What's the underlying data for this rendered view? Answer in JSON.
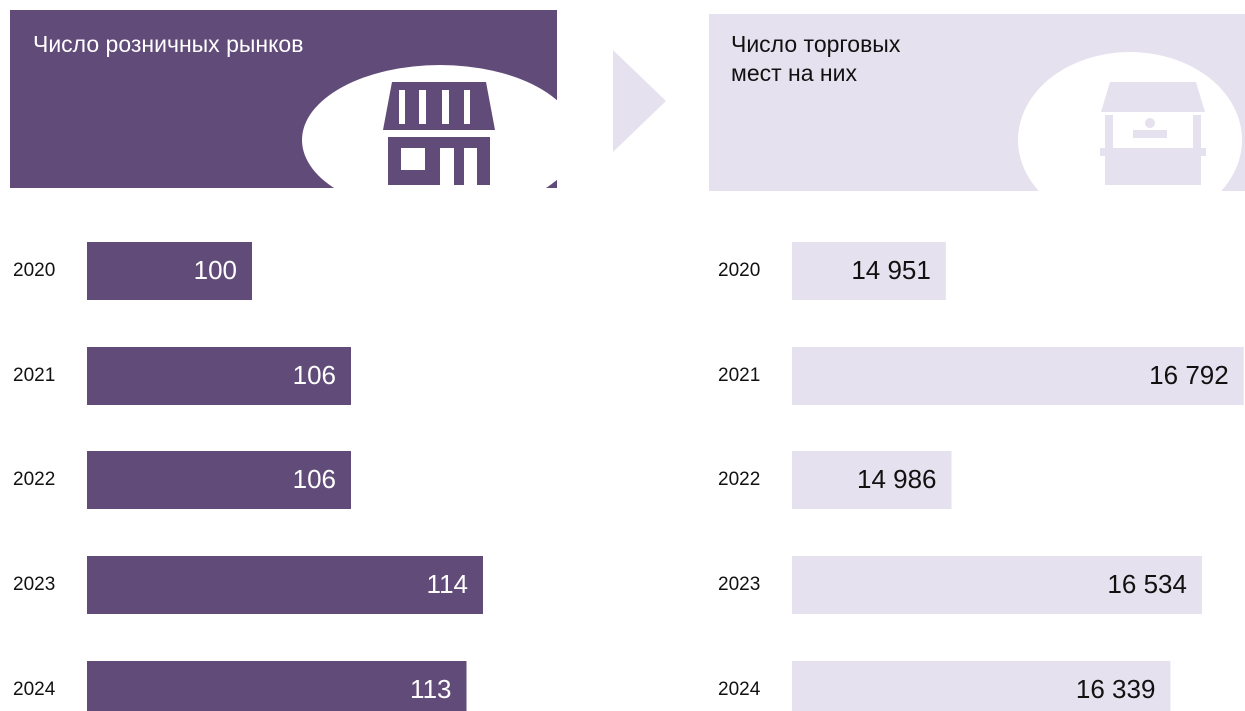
{
  "chart_data": [
    {
      "type": "bar",
      "orientation": "horizontal",
      "title": "Число розничных рынков",
      "categories": [
        "2020",
        "2021",
        "2022",
        "2023",
        "2024"
      ],
      "values": [
        100,
        106,
        106,
        114,
        113
      ],
      "color": "#614b79",
      "xlim": [
        90,
        120
      ]
    },
    {
      "type": "bar",
      "orientation": "horizontal",
      "title": "Число торговых мест на них",
      "categories": [
        "2020",
        "2021",
        "2022",
        "2023",
        "2024"
      ],
      "values": [
        14951,
        16792,
        14986,
        16534,
        16339
      ],
      "value_labels": [
        "14 951",
        "16 792",
        "14 986",
        "16 534",
        "16 339"
      ],
      "color": "#e6e1ee",
      "xlim": [
        14000,
        16800
      ]
    }
  ]
}
